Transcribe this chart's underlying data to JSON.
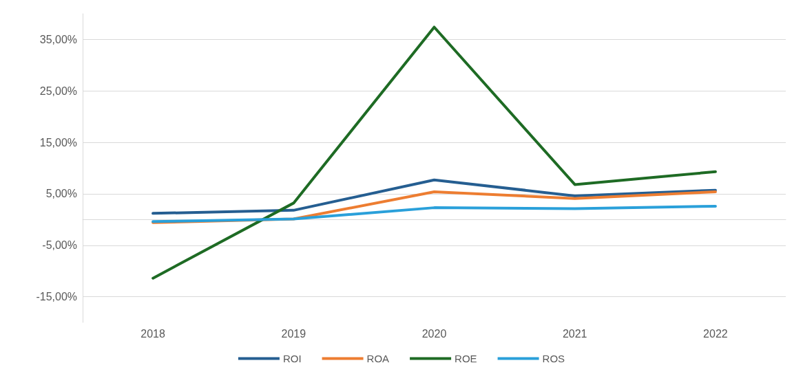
{
  "chart_data": {
    "type": "line",
    "categories": [
      "2018",
      "2019",
      "2020",
      "2021",
      "2022"
    ],
    "series": [
      {
        "name": "ROI",
        "color": "#255e91",
        "values": [
          1.2,
          1.8,
          7.7,
          4.6,
          5.7
        ]
      },
      {
        "name": "ROA",
        "color": "#ed7d31",
        "values": [
          -0.6,
          0.1,
          5.4,
          4.1,
          5.4
        ]
      },
      {
        "name": "ROE",
        "color": "#1e6b24",
        "values": [
          -11.4,
          3.2,
          37.4,
          6.8,
          9.3
        ]
      },
      {
        "name": "ROS",
        "color": "#2aa0da",
        "values": [
          -0.4,
          0.1,
          2.3,
          2.1,
          2.6
        ]
      }
    ],
    "ylim": [
      -20,
      40
    ],
    "yticks": [
      {
        "value": -15,
        "label": "-15,00%"
      },
      {
        "value": -5,
        "label": "-5,00%"
      },
      {
        "value": 5,
        "label": "5,00%"
      },
      {
        "value": 15,
        "label": "15,00%"
      },
      {
        "value": 25,
        "label": "25,00%"
      },
      {
        "value": 35,
        "label": "35,00%"
      }
    ],
    "grid": "y",
    "legend": "bottom",
    "marker": "none",
    "line_style": "solid"
  }
}
